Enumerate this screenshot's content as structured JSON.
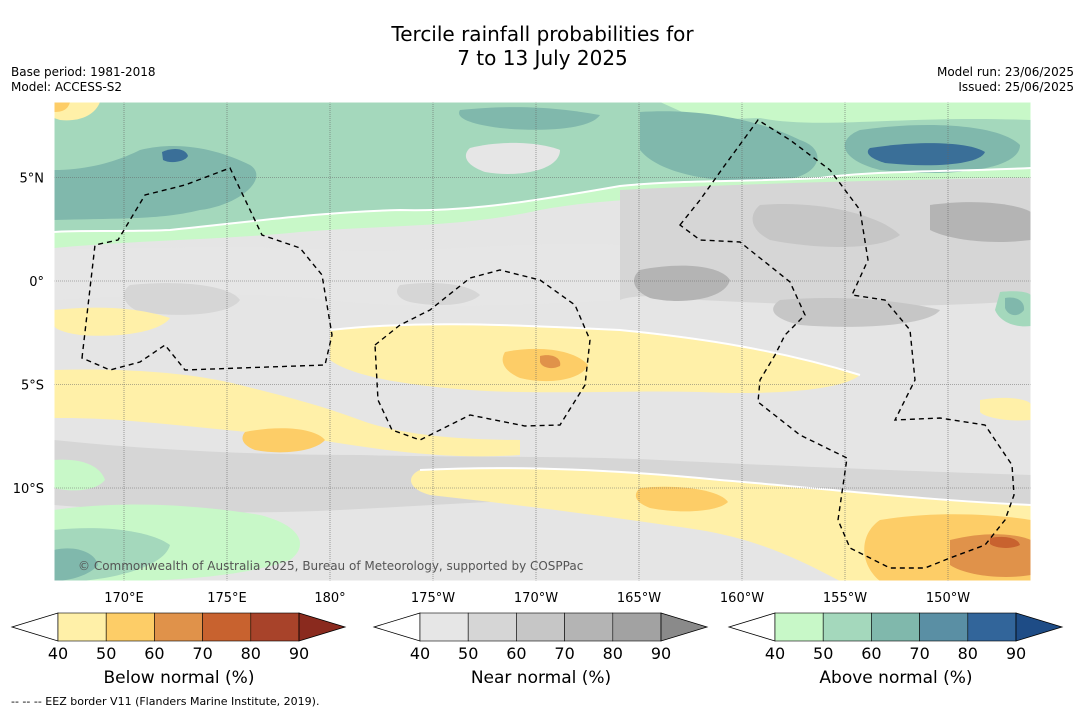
{
  "title_line1": "Tercile rainfall probabilities for",
  "title_line2": "7 to 13 July 2025",
  "meta_left": [
    "Base period: 1981-2018",
    "Model: ACCESS-S2"
  ],
  "meta_right": [
    "Model run: 23/06/2025",
    "Issued: 25/06/2025"
  ],
  "lat_labels": [
    "5°N",
    "0°",
    "5°S",
    "10°S"
  ],
  "lat_values": [
    5,
    0,
    -5,
    -10
  ],
  "lon_labels": [
    "170°E",
    "175°E",
    "180°",
    "175°W",
    "170°W",
    "165°W",
    "160°W",
    "155°W",
    "150°W"
  ],
  "lon_values": [
    170,
    175,
    180,
    185,
    190,
    195,
    200,
    205,
    210
  ],
  "copyright": "© Commonwealth of Australia 2025, Bureau of Meteorology, supported by COSPPac",
  "footnote": "-- -- -- EEZ border V11 (Flanders Marine Institute, 2019).",
  "colorbars": [
    {
      "label": "Below normal (%)",
      "ticks": [
        "40",
        "50",
        "60",
        "70",
        "80",
        "90"
      ],
      "colors": [
        "#fff0a8",
        "#fdcd67",
        "#e0924a",
        "#c8622f",
        "#a8432a",
        "#8a2a1e"
      ]
    },
    {
      "label": "Near normal (%)",
      "ticks": [
        "40",
        "50",
        "60",
        "70",
        "80",
        "90"
      ],
      "colors": [
        "#e6e6e6",
        "#d6d6d6",
        "#c6c6c6",
        "#b4b4b4",
        "#a2a2a2",
        "#8a8a8a"
      ]
    },
    {
      "label": "Above normal (%)",
      "ticks": [
        "40",
        "50",
        "60",
        "70",
        "80",
        "90"
      ],
      "colors": [
        "#c8f8c8",
        "#a4d8bc",
        "#80b8ac",
        "#5a8fa4",
        "#32659a",
        "#1e4c86"
      ]
    }
  ]
}
